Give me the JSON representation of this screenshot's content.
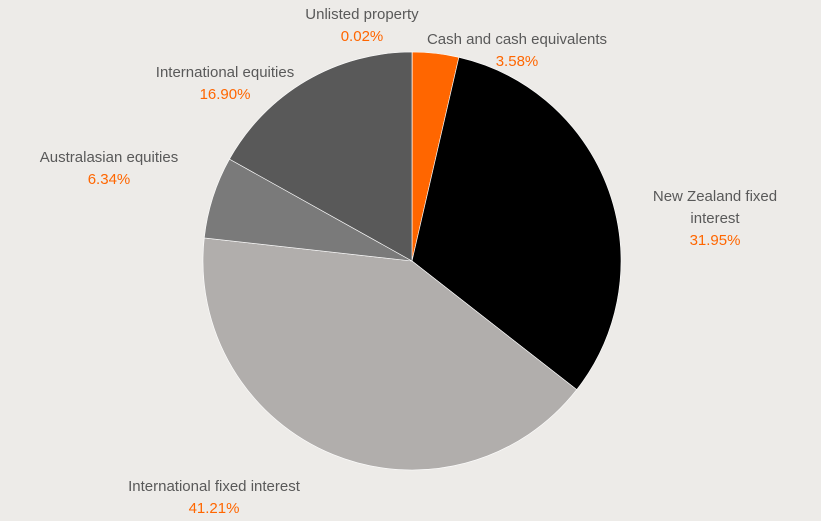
{
  "chart_data": {
    "type": "pie",
    "start_angle_deg": 0,
    "direction": "clockwise",
    "label_color": "#595959",
    "value_color": "#ff6600",
    "slices": [
      {
        "label": "Unlisted property",
        "value": 0.02,
        "display": "0.02%",
        "color": "#ff6600"
      },
      {
        "label": "Cash and cash equivalents",
        "value": 3.58,
        "display": "3.58%",
        "color": "#ff6600"
      },
      {
        "label": "New Zealand fixed interest",
        "value": 31.95,
        "display": "31.95%",
        "color": "#000000"
      },
      {
        "label": "International fixed interest",
        "value": 41.21,
        "display": "41.21%",
        "color": "#b1aeac"
      },
      {
        "label": "Australasian equities",
        "value": 6.34,
        "display": "6.34%",
        "color": "#7a7a7a"
      },
      {
        "label": "International equities",
        "value": 16.9,
        "display": "16.90%",
        "color": "#595959"
      }
    ]
  }
}
